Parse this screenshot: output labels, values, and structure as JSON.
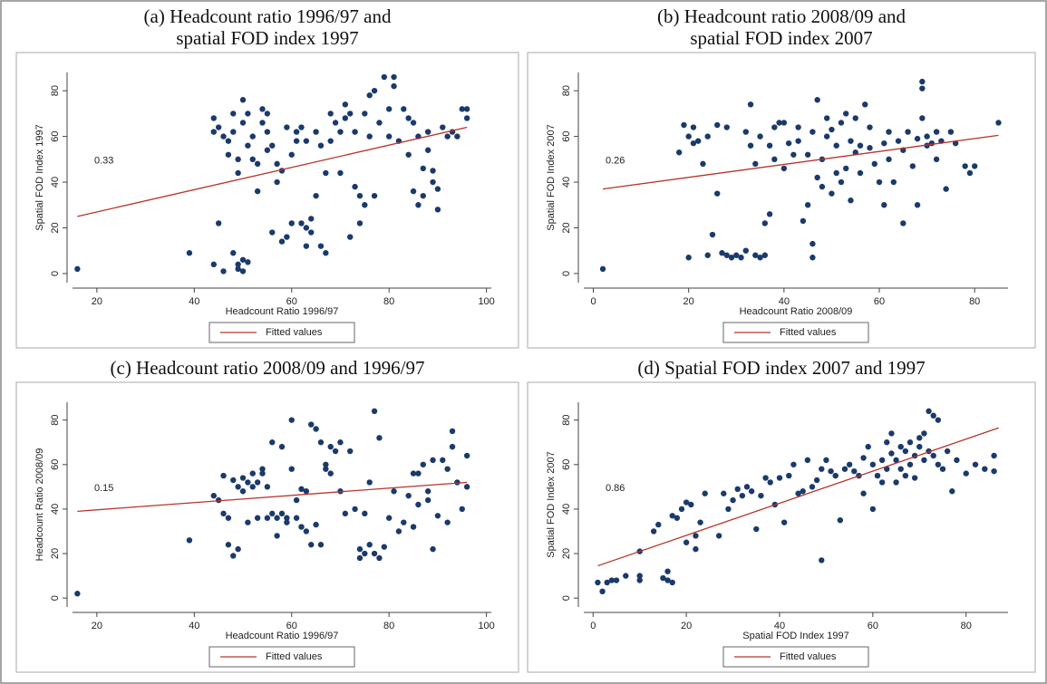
{
  "chart_data": [
    {
      "type": "scatter",
      "title": [
        "(a) Headcount ratio 1996/97 and",
        "spatial FOD index 1997"
      ],
      "xlabel": "Headcount Ratio 1996/97",
      "ylabel": "Spatial FOD Index 1997",
      "annotation": "0.33",
      "xlim": [
        15,
        101
      ],
      "ylim": [
        -4,
        88
      ],
      "xticks": [
        20,
        40,
        60,
        80,
        100
      ],
      "yticks": [
        0,
        20,
        40,
        60,
        80
      ],
      "grid": false,
      "series": [
        {
          "color": "#1b3a6b",
          "x": [
            16,
            39,
            44,
            45,
            46,
            48,
            49,
            49,
            50,
            50,
            51,
            44,
            44,
            45,
            46,
            47,
            47,
            48,
            48,
            49,
            49,
            50,
            50,
            51,
            51,
            52,
            52,
            53,
            53,
            54,
            54,
            55,
            55,
            55,
            56,
            56,
            57,
            57,
            58,
            58,
            59,
            59,
            60,
            60,
            61,
            61,
            62,
            62,
            63,
            63,
            63,
            64,
            64,
            65,
            65,
            66,
            66,
            67,
            67,
            68,
            68,
            69,
            70,
            70,
            71,
            71,
            72,
            72,
            73,
            73,
            74,
            74,
            75,
            75,
            76,
            76,
            77,
            77,
            78,
            79,
            80,
            80,
            81,
            81,
            82,
            83,
            84,
            84,
            85,
            85,
            86,
            86,
            87,
            87,
            88,
            88,
            89,
            89,
            90,
            90,
            91,
            92,
            93,
            94,
            95,
            96,
            96
          ],
          "values": [
            2,
            9,
            4,
            22,
            1,
            9,
            4,
            2,
            1,
            6,
            5,
            68,
            62,
            64,
            60,
            58,
            52,
            70,
            62,
            50,
            44,
            76,
            66,
            70,
            56,
            50,
            60,
            48,
            36,
            66,
            72,
            70,
            62,
            54,
            56,
            18,
            40,
            48,
            45,
            14,
            64,
            16,
            22,
            52,
            58,
            62,
            22,
            64,
            12,
            20,
            58,
            18,
            24,
            62,
            34,
            12,
            56,
            9,
            44,
            70,
            58,
            66,
            44,
            62,
            68,
            74,
            16,
            70,
            62,
            38,
            34,
            22,
            30,
            70,
            78,
            60,
            80,
            34,
            66,
            86,
            60,
            72,
            86,
            82,
            58,
            72,
            68,
            52,
            66,
            36,
            30,
            60,
            46,
            34,
            54,
            62,
            40,
            45,
            37,
            28,
            64,
            60,
            62,
            60,
            72,
            72,
            68
          ]
        },
        {
          "name": "Fitted values",
          "type": "line",
          "color": "#b5342c",
          "x": [
            16,
            96
          ],
          "values": [
            25,
            64
          ]
        }
      ]
    },
    {
      "type": "scatter",
      "title": [
        "(b) Headcount ratio 2008/09 and",
        "spatial FOD index 2007"
      ],
      "xlabel": "Headcount Ratio 2008/09",
      "ylabel": "Spatial FOD Index 2007",
      "annotation": "0.26",
      "xlim": [
        -2,
        87
      ],
      "ylim": [
        -4,
        88
      ],
      "xticks": [
        0,
        20,
        40,
        60,
        80
      ],
      "yticks": [
        0,
        20,
        40,
        60,
        80
      ],
      "grid": false,
      "series": [
        {
          "color": "#1b3a6b",
          "x": [
            2,
            18,
            19,
            20,
            20,
            21,
            21,
            22,
            23,
            24,
            24,
            25,
            26,
            26,
            27,
            28,
            28,
            29,
            30,
            31,
            32,
            32,
            33,
            33,
            34,
            34,
            35,
            35,
            36,
            36,
            37,
            37,
            38,
            38,
            39,
            40,
            40,
            41,
            42,
            43,
            43,
            44,
            45,
            45,
            46,
            46,
            46,
            47,
            47,
            48,
            48,
            49,
            49,
            50,
            50,
            51,
            51,
            52,
            52,
            53,
            53,
            54,
            54,
            55,
            55,
            56,
            56,
            57,
            58,
            58,
            59,
            60,
            61,
            61,
            62,
            62,
            63,
            64,
            65,
            65,
            66,
            67,
            68,
            68,
            69,
            69,
            69,
            70,
            70,
            71,
            72,
            72,
            73,
            74,
            75,
            76,
            78,
            79,
            80,
            85
          ],
          "values": [
            2,
            53,
            65,
            60,
            7,
            57,
            64,
            58,
            48,
            60,
            8,
            17,
            35,
            65,
            9,
            64,
            8,
            7,
            8,
            7,
            10,
            62,
            56,
            74,
            48,
            8,
            7,
            60,
            8,
            22,
            26,
            56,
            64,
            50,
            66,
            46,
            66,
            57,
            52,
            58,
            64,
            23,
            30,
            52,
            62,
            13,
            7,
            76,
            42,
            50,
            38,
            60,
            68,
            35,
            63,
            56,
            44,
            66,
            40,
            70,
            46,
            58,
            32,
            68,
            53,
            56,
            44,
            74,
            64,
            55,
            48,
            40,
            57,
            30,
            62,
            50,
            40,
            58,
            22,
            54,
            62,
            47,
            30,
            59,
            84,
            81,
            68,
            60,
            56,
            57,
            50,
            62,
            58,
            37,
            62,
            57,
            47,
            44,
            47,
            66
          ]
        },
        {
          "name": "Fitted values",
          "type": "line",
          "color": "#b5342c",
          "x": [
            2,
            85
          ],
          "values": [
            37,
            60.5
          ]
        }
      ]
    },
    {
      "type": "scatter",
      "title": [
        "(c) Headcount ratio 2008/09 and 1996/97"
      ],
      "xlabel": "Headcount Ratio 1996/97",
      "ylabel": "Headcount Ratio 2008/09",
      "annotation": "0.15",
      "xlim": [
        15,
        101
      ],
      "ylim": [
        -4,
        88
      ],
      "xticks": [
        20,
        40,
        60,
        80,
        100
      ],
      "yticks": [
        0,
        20,
        40,
        60,
        80
      ],
      "grid": false,
      "series": [
        {
          "color": "#1b3a6b",
          "x": [
            16,
            39,
            44,
            45,
            46,
            46,
            47,
            47,
            48,
            48,
            49,
            49,
            50,
            50,
            51,
            51,
            52,
            52,
            53,
            53,
            54,
            54,
            55,
            55,
            56,
            56,
            57,
            57,
            58,
            58,
            59,
            59,
            60,
            60,
            61,
            61,
            62,
            62,
            63,
            63,
            64,
            64,
            65,
            65,
            66,
            66,
            67,
            67,
            68,
            68,
            69,
            70,
            70,
            71,
            72,
            73,
            74,
            74,
            75,
            75,
            76,
            76,
            77,
            77,
            78,
            78,
            79,
            80,
            81,
            82,
            83,
            84,
            85,
            85,
            86,
            86,
            87,
            88,
            88,
            89,
            89,
            90,
            91,
            92,
            92,
            93,
            93,
            94,
            95,
            96,
            96
          ],
          "values": [
            2,
            26,
            46,
            44,
            38,
            55,
            36,
            24,
            19,
            53,
            22,
            50,
            48,
            54,
            34,
            52,
            50,
            56,
            36,
            52,
            58,
            56,
            36,
            50,
            38,
            70,
            28,
            36,
            68,
            38,
            36,
            34,
            80,
            58,
            44,
            36,
            49,
            32,
            48,
            30,
            24,
            78,
            76,
            33,
            24,
            70,
            60,
            58,
            68,
            56,
            66,
            70,
            48,
            38,
            66,
            40,
            22,
            18,
            38,
            20,
            24,
            52,
            20,
            84,
            72,
            18,
            23,
            36,
            48,
            30,
            34,
            46,
            32,
            56,
            56,
            42,
            60,
            48,
            44,
            62,
            22,
            37,
            62,
            34,
            58,
            68,
            75,
            52,
            40,
            64,
            50
          ]
        },
        {
          "name": "Fitted values",
          "type": "line",
          "color": "#b5342c",
          "x": [
            16,
            96
          ],
          "values": [
            39,
            52
          ]
        }
      ]
    },
    {
      "type": "scatter",
      "title": [
        "(d) Spatial FOD index 2007 and 1997"
      ],
      "xlabel": "Spatial FOD Index 1997",
      "ylabel": "Spatial FOD Index 2007",
      "annotation": "0.86",
      "xlim": [
        -2,
        89
      ],
      "ylim": [
        -4,
        88
      ],
      "xticks": [
        0,
        20,
        40,
        60,
        80
      ],
      "yticks": [
        0,
        20,
        40,
        60,
        80
      ],
      "grid": false,
      "series": [
        {
          "color": "#1b3a6b",
          "x": [
            1,
            2,
            3,
            4,
            5,
            7,
            10,
            10,
            10,
            13,
            14,
            15,
            16,
            16,
            17,
            17,
            18,
            19,
            20,
            20,
            21,
            22,
            22,
            23,
            24,
            27,
            28,
            29,
            30,
            31,
            32,
            33,
            34,
            35,
            36,
            37,
            38,
            39,
            40,
            41,
            42,
            43,
            44,
            45,
            46,
            47,
            48,
            49,
            49,
            50,
            51,
            52,
            53,
            54,
            55,
            56,
            57,
            58,
            58,
            59,
            60,
            60,
            61,
            62,
            62,
            63,
            63,
            64,
            64,
            65,
            65,
            66,
            66,
            67,
            67,
            68,
            68,
            69,
            69,
            70,
            70,
            71,
            71,
            72,
            72,
            73,
            73,
            74,
            74,
            75,
            76,
            77,
            78,
            80,
            82,
            84,
            86,
            86
          ],
          "values": [
            7,
            3,
            7,
            8,
            8,
            10,
            8,
            10,
            21,
            30,
            33,
            9,
            12,
            8,
            7,
            37,
            36,
            40,
            25,
            43,
            42,
            22,
            28,
            34,
            47,
            28,
            47,
            40,
            44,
            49,
            46,
            50,
            48,
            31,
            46,
            54,
            52,
            42,
            54,
            34,
            55,
            60,
            47,
            48,
            62,
            50,
            53,
            17,
            58,
            62,
            57,
            55,
            35,
            58,
            60,
            57,
            55,
            63,
            47,
            68,
            60,
            40,
            55,
            62,
            52,
            70,
            58,
            65,
            74,
            62,
            52,
            68,
            58,
            66,
            55,
            70,
            60,
            64,
            54,
            68,
            72,
            74,
            62,
            84,
            66,
            82,
            64,
            80,
            60,
            58,
            66,
            48,
            62,
            56,
            60,
            58,
            64,
            57
          ]
        },
        {
          "name": "Fitted values",
          "type": "line",
          "color": "#b5342c",
          "x": [
            1,
            87
          ],
          "values": [
            14.5,
            76.5
          ]
        }
      ]
    }
  ]
}
